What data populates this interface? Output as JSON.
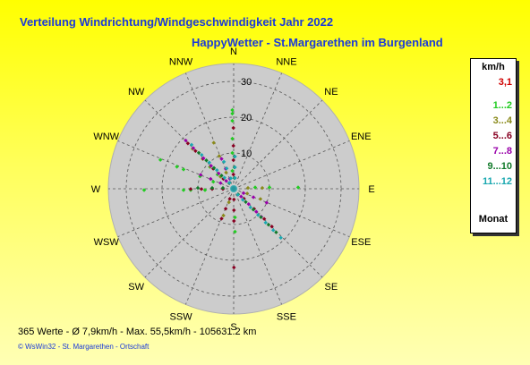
{
  "header": {
    "title": "Verteilung Windrichtung/Windgeschwindigkeit  Jahr 2022",
    "subtitle": "HappyWetter - St.Margarethen im Burgenland"
  },
  "chart_data": {
    "type": "scatter",
    "subtype": "wind-rose (polar, days as points per direction)",
    "directions": [
      "N",
      "NNE",
      "NE",
      "ENE",
      "E",
      "ESE",
      "SE",
      "SSE",
      "S",
      "SSW",
      "SW",
      "WSW",
      "W",
      "WNW",
      "NW",
      "NNW"
    ],
    "radial_ticks": [
      10,
      20,
      30
    ],
    "rmax": 35,
    "grid": true,
    "legend_placement": "right",
    "legend": {
      "unit": "km/h",
      "calm_value": "3,1",
      "entries": [
        {
          "label": "1...2",
          "color": "#22cc22"
        },
        {
          "label": "3...4",
          "color": "#8a8a1a"
        },
        {
          "label": "5...6",
          "color": "#880022"
        },
        {
          "label": "7...8",
          "color": "#9900aa"
        },
        {
          "label": "9...10",
          "color": "#117a2a"
        },
        {
          "label": "11...12",
          "color": "#1aa8b0"
        }
      ],
      "footer_label": "Monat"
    },
    "series": [
      {
        "label": "1...2",
        "color": "#22cc22",
        "points": [
          {
            "dir": "N",
            "values": [
              5,
              10,
              14,
              19,
              21,
              22
            ]
          },
          {
            "dir": "W",
            "values": [
              8,
              12,
              14,
              25
            ]
          },
          {
            "dir": "WNW",
            "values": [
              6,
              10,
              15,
              17,
              22
            ]
          },
          {
            "dir": "E",
            "values": [
              6,
              10,
              18
            ]
          },
          {
            "dir": "S",
            "values": [
              8,
              12
            ]
          },
          {
            "dir": "NW",
            "values": [
              6,
              9
            ]
          }
        ]
      },
      {
        "label": "3...4",
        "color": "#8a8a1a",
        "points": [
          {
            "dir": "NNW",
            "values": [
              5,
              10,
              14
            ]
          },
          {
            "dir": "NW",
            "values": [
              5,
              9,
              12,
              16
            ]
          },
          {
            "dir": "SSW",
            "values": [
              4,
              8
            ]
          },
          {
            "dir": "ESE",
            "values": [
              4,
              8
            ]
          },
          {
            "dir": "E",
            "values": [
              4,
              8
            ]
          }
        ]
      },
      {
        "label": "5...6",
        "color": "#880022",
        "points": [
          {
            "dir": "NW",
            "values": [
              4,
              8,
              12,
              15,
              18
            ]
          },
          {
            "dir": "SE",
            "values": [
              4,
              8,
              12,
              15
            ]
          },
          {
            "dir": "SSW",
            "values": [
              3,
              6,
              9
            ]
          },
          {
            "dir": "W",
            "values": [
              3,
              6,
              9,
              12
            ]
          },
          {
            "dir": "S",
            "values": [
              3,
              6,
              9,
              22
            ]
          },
          {
            "dir": "N",
            "values": [
              4,
              8,
              12,
              17
            ]
          }
        ]
      },
      {
        "label": "7...8",
        "color": "#9900aa",
        "points": [
          {
            "dir": "NW",
            "values": [
              3,
              6,
              9,
              12,
              16,
              19
            ]
          },
          {
            "dir": "ESE",
            "values": [
              3,
              6,
              10
            ]
          },
          {
            "dir": "SE",
            "values": [
              3,
              6,
              9,
              11
            ]
          },
          {
            "dir": "WNW",
            "values": [
              4,
              7,
              10
            ]
          },
          {
            "dir": "NNW",
            "values": [
              3,
              6,
              9
            ]
          }
        ]
      },
      {
        "label": "9...10",
        "color": "#117a2a",
        "points": [
          {
            "dir": "SE",
            "values": [
              2,
              5,
              8,
              11,
              14,
              17
            ]
          },
          {
            "dir": "NW",
            "values": [
              2,
              5,
              8,
              11,
              14
            ]
          },
          {
            "dir": "W",
            "values": [
              3,
              6,
              10
            ]
          },
          {
            "dir": "N",
            "values": [
              3,
              6,
              9
            ]
          }
        ]
      },
      {
        "label": "11...12",
        "color": "#1aa8b0",
        "points": [
          {
            "dir": "SE",
            "values": [
              2,
              4,
              7,
              10,
              13,
              16,
              19
            ]
          },
          {
            "dir": "NW",
            "values": [
              2,
              4,
              7,
              10,
              13,
              17
            ]
          },
          {
            "dir": "NNW",
            "values": [
              3,
              6,
              8
            ]
          },
          {
            "dir": "N",
            "values": [
              3,
              6,
              9
            ]
          }
        ]
      }
    ]
  },
  "footer": {
    "summary": "365 Werte   -   Ø 7,9km/h  -  Max. 55,5km/h   -   105631.2 km",
    "credit": "© WsWin32  -  St. Margarethen - Ortschaft"
  }
}
